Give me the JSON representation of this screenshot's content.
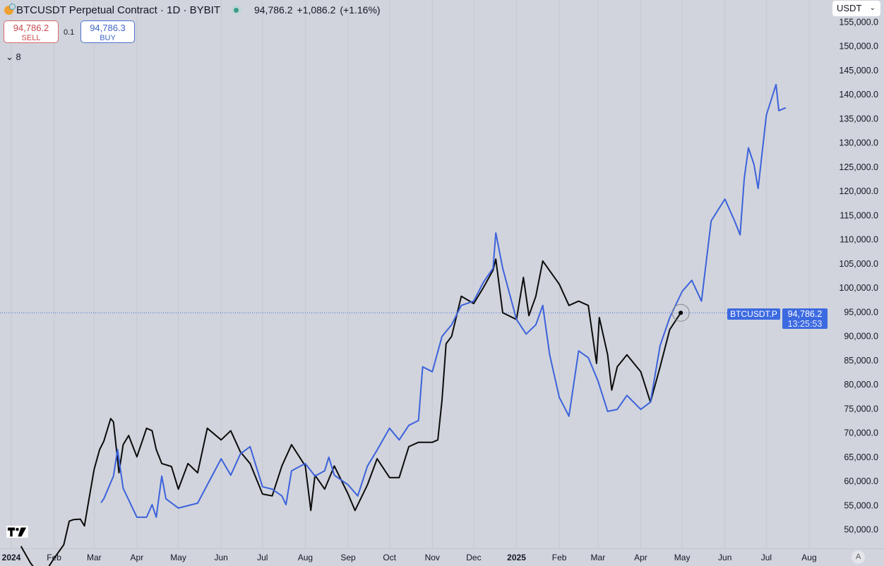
{
  "header": {
    "title": "BTCUSDT Perpetual Contract · 1D · BYBIT",
    "last": "94,786.2",
    "change": "+1,086.2",
    "change_pct": "(+1.16%)",
    "coin_icon": "bitcoin-coin-icon",
    "status_icon": "market-open-dot-icon"
  },
  "trade": {
    "sell_price": "94,786.2",
    "sell_label": "SELL",
    "spread": "0.1",
    "buy_price": "94,786.3",
    "buy_label": "BUY"
  },
  "indicators": {
    "toggle_icon": "chevron-down-icon",
    "count": "8"
  },
  "currency": {
    "selected": "USDT"
  },
  "price_label": {
    "symbol": "BTCUSDT.P",
    "price": "94,786.2",
    "countdown": "13:25:53"
  },
  "auto_scale": "A",
  "colors": {
    "background": "#d1d4dc",
    "black_series": "#0b0b0b",
    "blue_series": "#3c62dc",
    "sell": "#c94a50",
    "buy": "#3d65c5",
    "price_line": "#3c6ae0"
  },
  "chart_data": {
    "type": "line",
    "y_ticks": [
      "155,000.0",
      "150,000.0",
      "145,000.0",
      "140,000.0",
      "135,000.0",
      "130,000.0",
      "125,000.0",
      "120,000.0",
      "115,000.0",
      "110,000.0",
      "105,000.0",
      "100,000.0",
      "95,000.0",
      "90,000.0",
      "85,000.0",
      "80,000.0",
      "75,000.0",
      "70,000.0",
      "65,000.0",
      "60,000.0",
      "55,000.0",
      "50,000.0"
    ],
    "y_tick_values": [
      155000,
      150000,
      145000,
      140000,
      135000,
      130000,
      125000,
      120000,
      115000,
      110000,
      105000,
      100000,
      95000,
      90000,
      85000,
      80000,
      75000,
      70000,
      65000,
      60000,
      55000,
      50000
    ],
    "x_ticks": [
      {
        "label": "2024",
        "date": "2024-01-01",
        "bold": true
      },
      {
        "label": "Feb",
        "date": "2024-02-01"
      },
      {
        "label": "Mar",
        "date": "2024-03-01"
      },
      {
        "label": "Apr",
        "date": "2024-04-01"
      },
      {
        "label": "May",
        "date": "2024-05-01"
      },
      {
        "label": "Jun",
        "date": "2024-06-01"
      },
      {
        "label": "Jul",
        "date": "2024-07-01"
      },
      {
        "label": "Aug",
        "date": "2024-08-01"
      },
      {
        "label": "Sep",
        "date": "2024-09-01"
      },
      {
        "label": "Oct",
        "date": "2024-10-01"
      },
      {
        "label": "Nov",
        "date": "2024-11-01"
      },
      {
        "label": "Dec",
        "date": "2024-12-01"
      },
      {
        "label": "2025",
        "date": "2025-01-01",
        "bold": true
      },
      {
        "label": "Feb",
        "date": "2025-02-01"
      },
      {
        "label": "Mar",
        "date": "2025-03-01"
      },
      {
        "label": "Apr",
        "date": "2025-04-01"
      },
      {
        "label": "May",
        "date": "2025-05-01"
      },
      {
        "label": "Jun",
        "date": "2025-06-01"
      },
      {
        "label": "Jul",
        "date": "2025-07-01"
      },
      {
        "label": "Aug",
        "date": "2025-08-01"
      }
    ],
    "current_price": 94786.2,
    "grid": "vertical only",
    "series": [
      {
        "color": "#0b0b0b",
        "points": [
          [
            "2024-01-08",
            46500
          ],
          [
            "2024-01-15",
            43000
          ],
          [
            "2024-01-23",
            40000
          ],
          [
            "2024-02-01",
            44000
          ],
          [
            "2024-02-08",
            46800
          ],
          [
            "2024-02-12",
            51700
          ],
          [
            "2024-02-15",
            52000
          ],
          [
            "2024-02-20",
            52100
          ],
          [
            "2024-02-23",
            50700
          ],
          [
            "2024-02-26",
            55800
          ],
          [
            "2024-03-01",
            62400
          ],
          [
            "2024-03-05",
            66500
          ],
          [
            "2024-03-08",
            68200
          ],
          [
            "2024-03-13",
            72900
          ],
          [
            "2024-03-15",
            72200
          ],
          [
            "2024-03-19",
            61700
          ],
          [
            "2024-03-22",
            67500
          ],
          [
            "2024-03-26",
            69400
          ],
          [
            "2024-04-01",
            65000
          ],
          [
            "2024-04-08",
            70900
          ],
          [
            "2024-04-12",
            70400
          ],
          [
            "2024-04-15",
            66500
          ],
          [
            "2024-04-19",
            63600
          ],
          [
            "2024-04-26",
            63000
          ],
          [
            "2024-05-01",
            58300
          ],
          [
            "2024-05-08",
            63600
          ],
          [
            "2024-05-15",
            61700
          ],
          [
            "2024-05-22",
            70900
          ],
          [
            "2024-06-01",
            68500
          ],
          [
            "2024-06-08",
            70400
          ],
          [
            "2024-06-15",
            66000
          ],
          [
            "2024-06-22",
            63600
          ],
          [
            "2024-07-01",
            57300
          ],
          [
            "2024-07-08",
            56900
          ],
          [
            "2024-07-15",
            63100
          ],
          [
            "2024-07-22",
            67500
          ],
          [
            "2024-08-01",
            63100
          ],
          [
            "2024-08-05",
            53900
          ],
          [
            "2024-08-08",
            61200
          ],
          [
            "2024-08-15",
            58300
          ],
          [
            "2024-08-22",
            63100
          ],
          [
            "2024-09-01",
            57300
          ],
          [
            "2024-09-06",
            53900
          ],
          [
            "2024-09-15",
            59200
          ],
          [
            "2024-09-22",
            64600
          ],
          [
            "2024-10-01",
            60700
          ],
          [
            "2024-10-08",
            60700
          ],
          [
            "2024-10-15",
            67100
          ],
          [
            "2024-10-22",
            68000
          ],
          [
            "2024-11-01",
            68000
          ],
          [
            "2024-11-05",
            68500
          ],
          [
            "2024-11-08",
            76700
          ],
          [
            "2024-11-11",
            88400
          ],
          [
            "2024-11-15",
            89900
          ],
          [
            "2024-11-22",
            98200
          ],
          [
            "2024-12-01",
            96700
          ],
          [
            "2024-12-08",
            100000
          ],
          [
            "2024-12-15",
            103600
          ],
          [
            "2024-12-17",
            105900
          ],
          [
            "2024-12-22",
            94800
          ],
          [
            "2025-01-01",
            93400
          ],
          [
            "2025-01-06",
            102100
          ],
          [
            "2025-01-10",
            94200
          ],
          [
            "2025-01-15",
            98200
          ],
          [
            "2025-01-20",
            105500
          ],
          [
            "2025-02-01",
            100700
          ],
          [
            "2025-02-08",
            96300
          ],
          [
            "2025-02-15",
            97200
          ],
          [
            "2025-02-22",
            96300
          ],
          [
            "2025-02-28",
            84300
          ],
          [
            "2025-03-02",
            93800
          ],
          [
            "2025-03-08",
            86100
          ],
          [
            "2025-03-11",
            78800
          ],
          [
            "2025-03-15",
            83600
          ],
          [
            "2025-03-22",
            86100
          ],
          [
            "2025-04-01",
            82600
          ],
          [
            "2025-04-08",
            76300
          ],
          [
            "2025-04-15",
            83600
          ],
          [
            "2025-04-22",
            91300
          ],
          [
            "2025-04-30",
            94786.2
          ]
        ]
      },
      {
        "color": "#3c62dc",
        "points": [
          [
            "2024-03-06",
            55500
          ],
          [
            "2024-03-08",
            56300
          ],
          [
            "2024-03-15",
            61000
          ],
          [
            "2024-03-18",
            66500
          ],
          [
            "2024-03-22",
            58500
          ],
          [
            "2024-04-01",
            52500
          ],
          [
            "2024-04-08",
            52500
          ],
          [
            "2024-04-12",
            55100
          ],
          [
            "2024-04-15",
            52500
          ],
          [
            "2024-04-19",
            61000
          ],
          [
            "2024-04-22",
            56300
          ],
          [
            "2024-05-01",
            54400
          ],
          [
            "2024-05-15",
            55400
          ],
          [
            "2024-05-22",
            59200
          ],
          [
            "2024-06-01",
            64600
          ],
          [
            "2024-06-08",
            61200
          ],
          [
            "2024-06-15",
            65600
          ],
          [
            "2024-06-22",
            67100
          ],
          [
            "2024-07-01",
            58800
          ],
          [
            "2024-07-08",
            58300
          ],
          [
            "2024-07-15",
            56900
          ],
          [
            "2024-07-18",
            55100
          ],
          [
            "2024-07-22",
            62100
          ],
          [
            "2024-08-01",
            63600
          ],
          [
            "2024-08-08",
            61000
          ],
          [
            "2024-08-15",
            62100
          ],
          [
            "2024-08-18",
            64900
          ],
          [
            "2024-08-22",
            61200
          ],
          [
            "2024-09-01",
            59200
          ],
          [
            "2024-09-08",
            56900
          ],
          [
            "2024-09-15",
            63100
          ],
          [
            "2024-09-22",
            66400
          ],
          [
            "2024-10-01",
            70900
          ],
          [
            "2024-10-08",
            68500
          ],
          [
            "2024-10-15",
            71500
          ],
          [
            "2024-10-22",
            72500
          ],
          [
            "2024-10-25",
            83600
          ],
          [
            "2024-11-01",
            82600
          ],
          [
            "2024-11-08",
            89900
          ],
          [
            "2024-11-15",
            92300
          ],
          [
            "2024-11-22",
            96300
          ],
          [
            "2024-12-01",
            97200
          ],
          [
            "2024-12-08",
            101100
          ],
          [
            "2024-12-15",
            104000
          ],
          [
            "2024-12-17",
            111300
          ],
          [
            "2024-12-22",
            104000
          ],
          [
            "2025-01-01",
            93400
          ],
          [
            "2025-01-08",
            90400
          ],
          [
            "2025-01-15",
            92300
          ],
          [
            "2025-01-20",
            96300
          ],
          [
            "2025-01-25",
            86100
          ],
          [
            "2025-02-01",
            77300
          ],
          [
            "2025-02-08",
            73400
          ],
          [
            "2025-02-15",
            86900
          ],
          [
            "2025-02-22",
            85500
          ],
          [
            "2025-03-01",
            80700
          ],
          [
            "2025-03-08",
            74400
          ],
          [
            "2025-03-15",
            74800
          ],
          [
            "2025-03-22",
            77700
          ],
          [
            "2025-04-01",
            74800
          ],
          [
            "2025-04-08",
            76300
          ],
          [
            "2025-04-15",
            88000
          ],
          [
            "2025-04-22",
            93800
          ],
          [
            "2025-05-01",
            99200
          ],
          [
            "2025-05-08",
            101500
          ],
          [
            "2025-05-15",
            97200
          ],
          [
            "2025-05-22",
            113800
          ],
          [
            "2025-06-01",
            118300
          ],
          [
            "2025-06-08",
            113800
          ],
          [
            "2025-06-12",
            110900
          ],
          [
            "2025-06-15",
            122600
          ],
          [
            "2025-06-18",
            128900
          ],
          [
            "2025-06-22",
            125500
          ],
          [
            "2025-06-25",
            120500
          ],
          [
            "2025-07-01",
            135700
          ],
          [
            "2025-07-08",
            142000
          ],
          [
            "2025-07-10",
            136600
          ],
          [
            "2025-07-15",
            137200
          ]
        ]
      }
    ]
  }
}
